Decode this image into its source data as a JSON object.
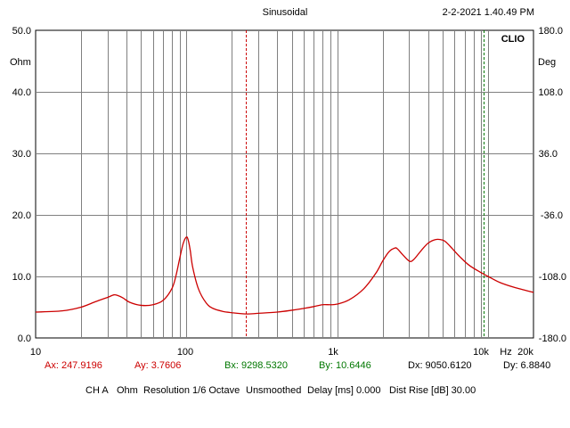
{
  "header": {
    "mode": "Sinusoidal",
    "datetime": "2-2-2021 1.40.49 PM",
    "logo": "CLIO"
  },
  "axes": {
    "left_unit": "Ohm",
    "right_unit": "Deg",
    "x_unit": "Hz",
    "left_ticks": [
      "50.0",
      "40.0",
      "30.0",
      "20.0",
      "10.0",
      "0.0"
    ],
    "right_ticks": [
      "180.0",
      "108.0",
      "36.0",
      "-36.0",
      "-108.0",
      "-180.0"
    ],
    "x_ticks": [
      "10",
      "100",
      "1k",
      "10k",
      "20k"
    ]
  },
  "cursors": {
    "ax": "Ax: 247.9196",
    "ay": "Ay: 3.7606",
    "bx": "Bx: 9298.5320",
    "by": "By: 10.6446",
    "dx": "Dx: 9050.6120",
    "dy": "Dy: 6.8840"
  },
  "footer": {
    "channel": "CH A",
    "unit": "Ohm",
    "resolution": "Resolution 1/6 Octave",
    "smoothing": "Unsmoothed",
    "delay": "Delay [ms] 0.000",
    "dist_rise": "Dist Rise [dB] 30.00"
  },
  "colors": {
    "curve": "#cc0000",
    "cursor_a": "#cc0000",
    "cursor_b": "#007700",
    "grid": "#808080"
  },
  "chart_data": {
    "type": "line",
    "x_scale": "log",
    "xlim": [
      10,
      20000
    ],
    "ylim": [
      0,
      50
    ],
    "y2lim": [
      -180,
      180
    ],
    "grid": true,
    "series": [
      {
        "x": [
          10,
          15,
          20,
          25,
          30,
          33,
          35,
          38,
          42,
          50,
          60,
          70,
          80,
          85,
          90,
          95,
          100,
          103,
          106,
          110,
          120,
          135,
          150,
          175,
          200,
          250,
          300,
          400,
          500,
          600,
          700,
          800,
          900,
          1000,
          1200,
          1500,
          1800,
          2000,
          2200,
          2400,
          2500,
          2700,
          3000,
          3200,
          3600,
          4000,
          4500,
          5000,
          5300,
          5800,
          6500,
          7500,
          9000,
          10000,
          12000,
          15000,
          20000
        ],
        "y": [
          4.2,
          4.4,
          5.0,
          5.9,
          6.6,
          7.0,
          6.9,
          6.5,
          5.8,
          5.3,
          5.4,
          6.1,
          8.0,
          10.0,
          12.8,
          15.3,
          16.4,
          15.8,
          14.2,
          11.5,
          8.0,
          5.7,
          4.8,
          4.3,
          4.1,
          3.9,
          4.0,
          4.2,
          4.5,
          4.8,
          5.1,
          5.4,
          5.4,
          5.5,
          6.2,
          8.0,
          10.5,
          12.5,
          14.0,
          14.6,
          14.5,
          13.6,
          12.5,
          12.7,
          14.2,
          15.4,
          16.0,
          15.9,
          15.5,
          14.5,
          13.2,
          11.8,
          10.6,
          10.0,
          9.0,
          8.2,
          7.4
        ]
      }
    ],
    "cursor_a_x": 247.9196,
    "cursor_b_x": 9298.532
  }
}
